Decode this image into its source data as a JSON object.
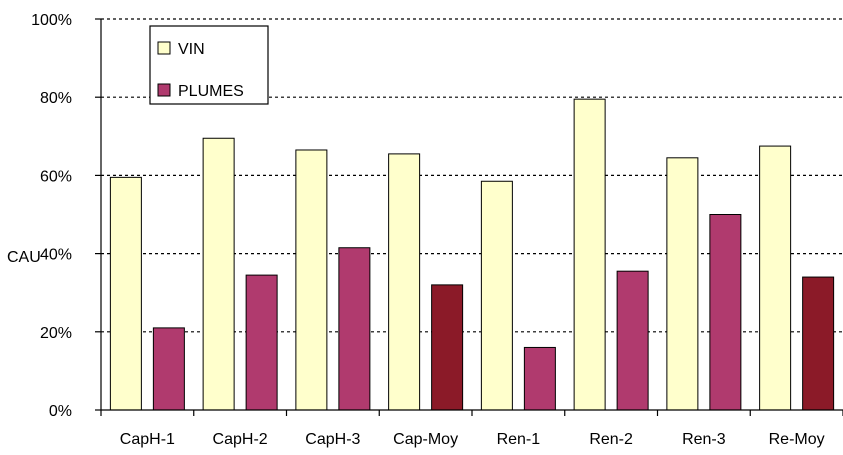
{
  "chart_data": {
    "type": "bar",
    "ylabel": "CAU",
    "ylim": [
      0,
      100
    ],
    "ytick_labels": [
      "0%",
      "20%",
      "40%",
      "60%",
      "80%",
      "100%"
    ],
    "ytick_values": [
      0,
      20,
      40,
      60,
      80,
      100
    ],
    "grid": "horizontal dashed",
    "legend_position": "top-left",
    "categories": [
      "CapH-1",
      "CapH-2",
      "CapH-3",
      "Cap-Moy",
      "Ren-1",
      "Ren-2",
      "Ren-3",
      "Re-Moy"
    ],
    "series": [
      {
        "name": "VIN",
        "color": "#FFFFCC",
        "values": [
          59.5,
          69.5,
          66.5,
          65.5,
          58.5,
          79.5,
          64.5,
          67.5
        ]
      },
      {
        "name": "PLUMES",
        "color": "#B03A6E",
        "average_color": "#8B1A28",
        "values": [
          21,
          34.5,
          41.5,
          32,
          16,
          35.5,
          50,
          34
        ]
      }
    ]
  }
}
